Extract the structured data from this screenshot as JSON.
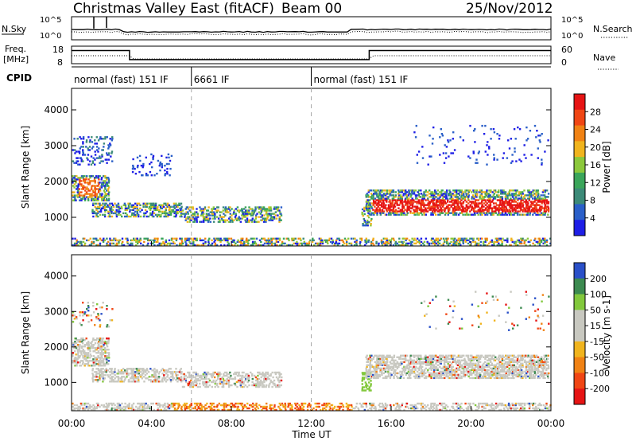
{
  "header": {
    "title": "Christmas Valley East (fitACF)",
    "beam": "Beam 00",
    "date": "25/Nov/2012"
  },
  "colors": {
    "power_scale": [
      "#1e1ee6",
      "#2a5fc8",
      "#3c8a78",
      "#3aa55a",
      "#8cc83c",
      "#f0b41e",
      "#f08214",
      "#f04614",
      "#e61414"
    ],
    "velocity_scale": [
      "#e61414",
      "#f04614",
      "#f08214",
      "#f0b41e",
      "#c8c8c0",
      "#c8c8c0",
      "#82c83c",
      "#3c8a50",
      "#2a50c8"
    ]
  },
  "chart_data": [
    {
      "type": "line",
      "name": "sky-noise-panel",
      "ylabel": "N.Sky",
      "right_label": "N.Search",
      "y_ticks_left": [
        "10^5",
        "10^0"
      ],
      "y_ticks_right": [
        "10^5",
        "10^0"
      ]
    },
    {
      "type": "line",
      "name": "frequency-panel",
      "ylabel": "Freq.",
      "ylabel_unit": "[MHz]",
      "right_label": "Nave",
      "y_ticks_left": [
        "18",
        "8"
      ],
      "y_ticks_right": [
        "60",
        "0"
      ],
      "freq_steps": [
        {
          "t0": 0.0,
          "t1": 2.9,
          "mhz": 15.5
        },
        {
          "t0": 2.9,
          "t1": 14.9,
          "mhz": 10.3
        },
        {
          "t0": 14.9,
          "t1": 24.0,
          "mhz": 15.5
        }
      ]
    },
    {
      "type": "table",
      "name": "cpid-bar",
      "label": "CPID",
      "segments": [
        {
          "start": 0.0,
          "end": 6.0,
          "text": "normal (fast) 151 IF"
        },
        {
          "start": 6.0,
          "end": 12.0,
          "text": "6661 IF"
        },
        {
          "start": 12.0,
          "end": 24.0,
          "text": "normal (fast) 151 IF"
        }
      ]
    },
    {
      "type": "heatmap",
      "name": "power-panel",
      "ylabel": "Slant Range [km]",
      "ylim": [
        200,
        4600
      ],
      "y_ticks": [
        1000,
        2000,
        3000,
        4000
      ],
      "colorbar_label": "Power [dB]",
      "colorbar_ticks": [
        "28",
        "24",
        "20",
        "16",
        "12",
        "8",
        "4"
      ]
    },
    {
      "type": "heatmap",
      "name": "velocity-panel",
      "ylabel": "Slant Range [km]",
      "xlabel": "Time UT",
      "ylim": [
        200,
        4600
      ],
      "y_ticks": [
        1000,
        2000,
        3000,
        4000
      ],
      "x_ticks": [
        "00:00",
        "04:00",
        "08:00",
        "12:00",
        "16:00",
        "20:00",
        "00:00"
      ],
      "xlim": [
        0,
        24
      ],
      "colorbar_label": "Velocity [m s-1]",
      "colorbar_ticks": [
        "200",
        "100",
        "50",
        "15",
        "-15",
        "-50",
        "-100",
        "-200"
      ]
    }
  ]
}
